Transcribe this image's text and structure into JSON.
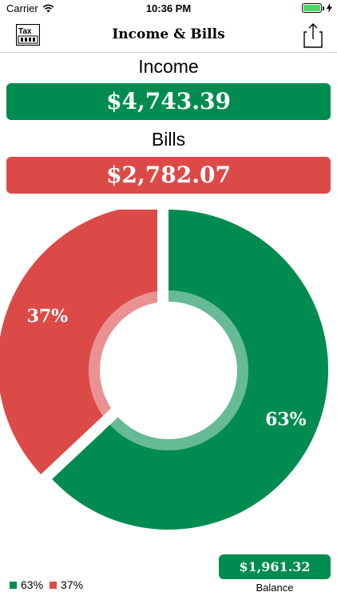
{
  "status_bar": {
    "carrier": "Carrier",
    "time": "10:36 PM"
  },
  "nav": {
    "title": "Income & Bills",
    "tax_icon_text": "Tax"
  },
  "income": {
    "label": "Income",
    "amount": "$4,743.39"
  },
  "bills": {
    "label": "Bills",
    "amount": "$2,782.07"
  },
  "chart_data": {
    "type": "pie",
    "title": "",
    "categories": [
      "Income",
      "Bills"
    ],
    "values": [
      63,
      37
    ],
    "labels": [
      "63%",
      "37%"
    ],
    "colors": [
      "#008c50",
      "#dc4a48"
    ],
    "legend": [
      {
        "label": "63%",
        "color": "#008c50"
      },
      {
        "label": "37%",
        "color": "#dc4a48"
      }
    ]
  },
  "balance": {
    "amount": "$1,961.32",
    "label": "Balance"
  },
  "colors": {
    "income": "#008c50",
    "bills": "#dc4a48"
  }
}
